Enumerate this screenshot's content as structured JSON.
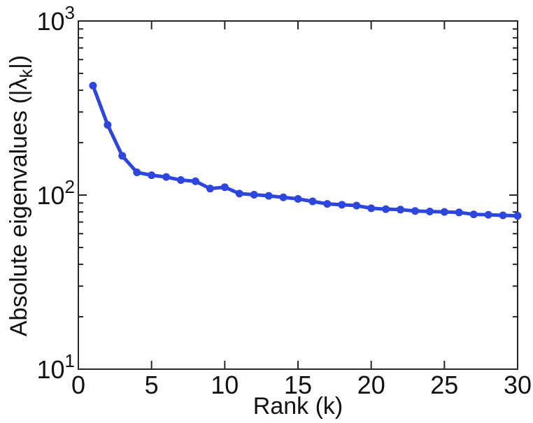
{
  "figure": {
    "background": "#ffffff",
    "axis_color": "#262626"
  },
  "chart_data": {
    "type": "line",
    "title": "",
    "xlabel": "Rank (k)",
    "ylabel": {
      "main": "Absolute eigenvalues (|λ",
      "sub": "k",
      "end": "|)"
    },
    "series": [
      {
        "name": "absolute-eigenvalues",
        "x": [
          1,
          2,
          3,
          4,
          5,
          6,
          7,
          8,
          9,
          10,
          11,
          12,
          13,
          14,
          15,
          16,
          17,
          18,
          19,
          20,
          21,
          22,
          23,
          24,
          25,
          26,
          27,
          28,
          29,
          30
        ],
        "values": [
          425,
          253,
          168,
          135,
          130,
          127,
          122,
          120,
          109,
          111,
          102,
          100.5,
          99,
          97,
          95,
          92,
          89,
          88,
          87,
          84,
          83,
          82.5,
          81,
          80.5,
          80,
          79.5,
          77.5,
          77,
          76.5,
          76
        ],
        "line_color": "#2c46de",
        "marker": "circle",
        "line_width": 5,
        "marker_radius": 5.5
      }
    ],
    "xlim": [
      0,
      30
    ],
    "ylim": [
      10,
      1000
    ],
    "yscale": "log",
    "xscale": "linear",
    "grid": false,
    "legend": null,
    "box": true,
    "xticks": [
      "0",
      "5",
      "10",
      "15",
      "20",
      "25",
      "30"
    ],
    "xtick_values": [
      0,
      5,
      10,
      15,
      20,
      25,
      30
    ],
    "yticks": [
      {
        "value": 10,
        "base": "10",
        "exp": "1"
      },
      {
        "value": 100,
        "base": "10",
        "exp": "2"
      },
      {
        "value": 1000,
        "base": "10",
        "exp": "3"
      }
    ],
    "y_minor_ticks": [
      20,
      30,
      40,
      50,
      60,
      70,
      80,
      90,
      200,
      300,
      400,
      500,
      600,
      700,
      800,
      900
    ]
  }
}
